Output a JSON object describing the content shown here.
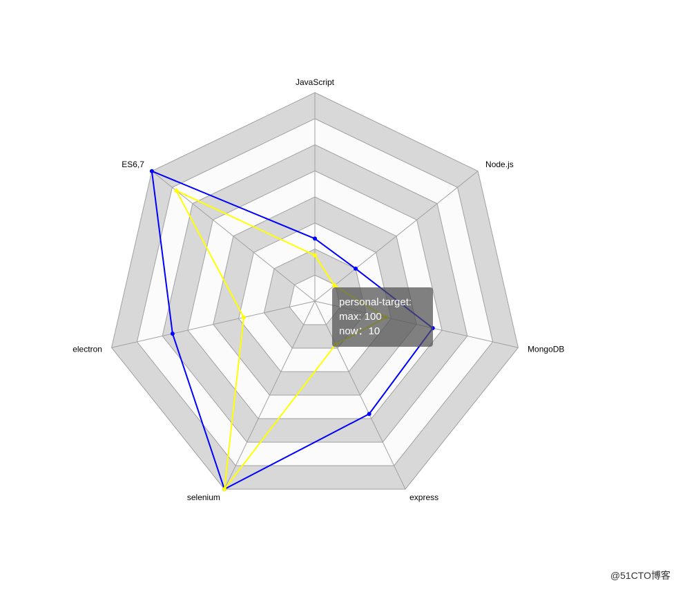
{
  "chart_data": {
    "type": "radar",
    "axes": [
      "JavaScript",
      "Node.js",
      "MongoDB",
      "express",
      "selenium",
      "electron",
      "ES6,7"
    ],
    "max": 100,
    "levels": 8,
    "series": [
      {
        "color": "#0000ff",
        "values": [
          30,
          25,
          58,
          60,
          100,
          70,
          100
        ]
      },
      {
        "color": "#ffff00",
        "values": [
          22,
          12,
          35,
          23,
          100,
          35,
          85
        ]
      }
    ],
    "band_colors": [
      "#d8d8d8",
      "#fbfbfb"
    ],
    "grid_line_color": "#a0a0a0"
  },
  "tooltip": {
    "line1": "personal-target:",
    "line2": "max: 100",
    "line3": "now：10"
  },
  "watermark": "@51CTO博客"
}
